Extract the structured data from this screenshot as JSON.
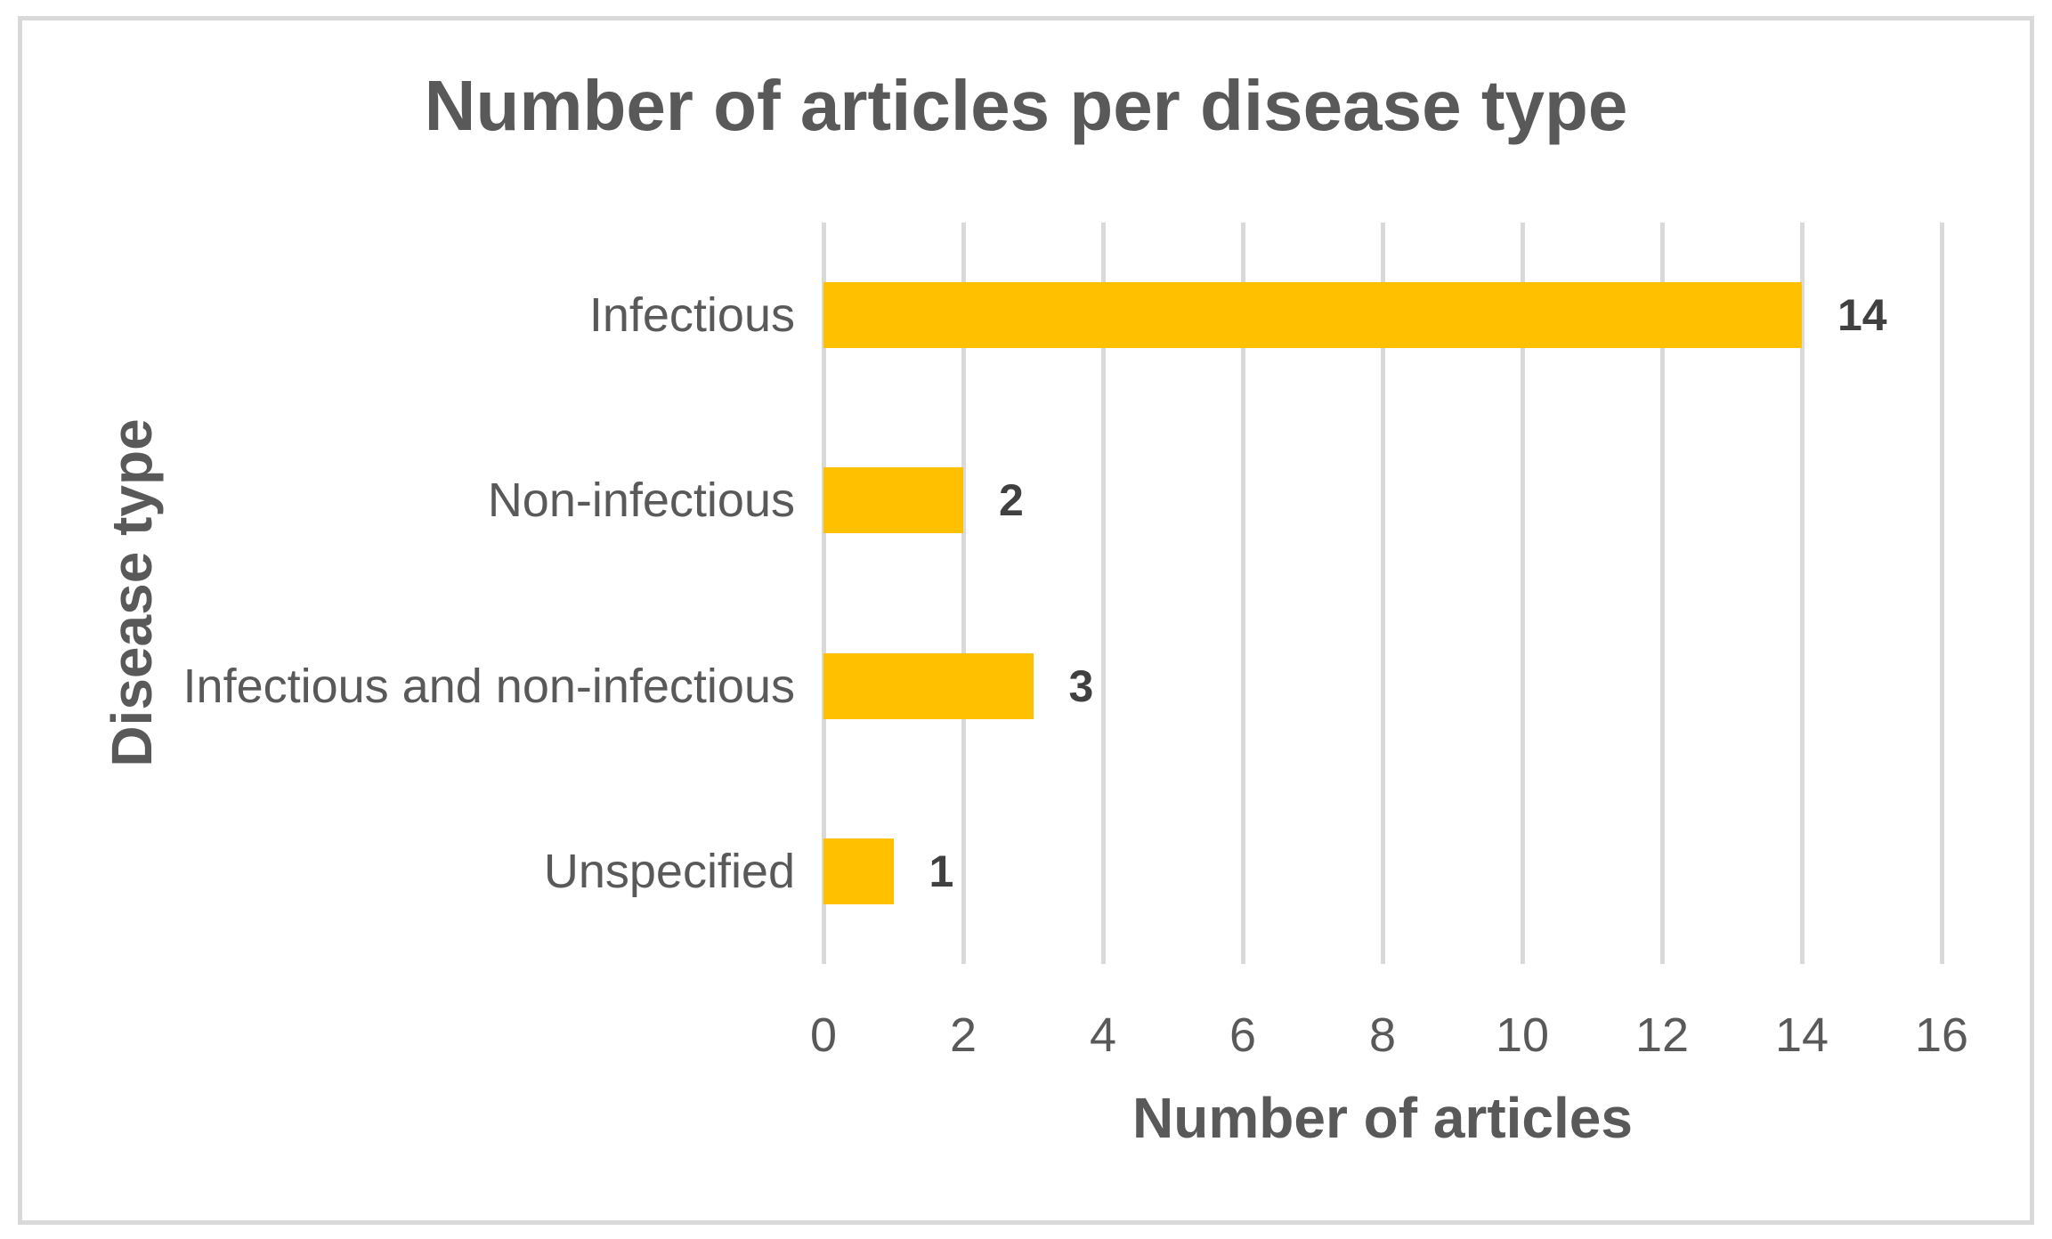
{
  "chart_data": {
    "type": "bar",
    "orientation": "horizontal",
    "title": "Number of articles per disease type",
    "categories": [
      "Infectious",
      "Non-infectious",
      "Infectious and non-infectious",
      "Unspecified"
    ],
    "values": [
      14,
      2,
      3,
      1
    ],
    "data_labels": [
      "14",
      "2",
      "3",
      "1"
    ],
    "xlabel": "Number of articles",
    "ylabel": "Disease type",
    "xlim": [
      0,
      16
    ],
    "xticks": [
      0,
      2,
      4,
      6,
      8,
      10,
      12,
      14,
      16
    ],
    "grid": true,
    "legend": false
  },
  "colors": {
    "bar": "#FFC000",
    "axis_text": "#595959",
    "data_label_text": "#404040",
    "gridline": "#D9D9D9",
    "border": "#D9D9D9",
    "background": "#FFFFFF"
  }
}
